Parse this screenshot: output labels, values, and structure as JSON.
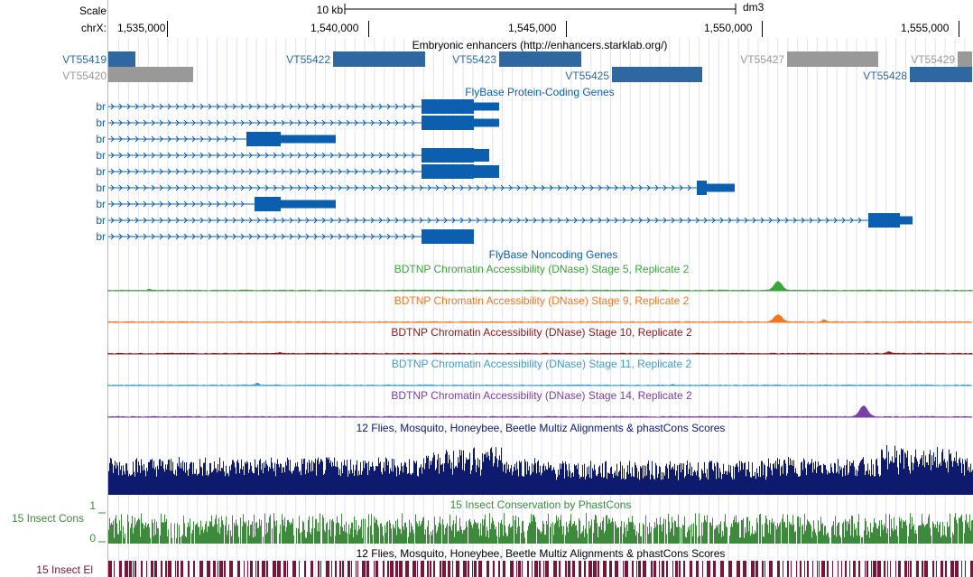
{
  "ruler": {
    "scale_label": "Scale",
    "chrom_label": "chrX:",
    "scalebar_label": "10 kb",
    "assembly": "dm3",
    "ticks": [
      "1,535,000",
      "1,540,000",
      "1,545,000",
      "1,550,000",
      "1,555,000"
    ]
  },
  "tracks": {
    "enhancers": {
      "title": "Embryonic enhancers (http://enhancers.starklab.org/)",
      "items": [
        {
          "id": "VT55419",
          "color": "#2f68a0"
        },
        {
          "id": "VT55420",
          "color": "#999999"
        },
        {
          "id": "VT55422",
          "color": "#2f68a0"
        },
        {
          "id": "VT55423",
          "color": "#2f68a0"
        },
        {
          "id": "VT55425",
          "color": "#2f68a0"
        },
        {
          "id": "VT55427",
          "color": "#999999"
        },
        {
          "id": "VT55429",
          "color": "#999999"
        },
        {
          "id": "VT55428",
          "color": "#2f68a0"
        }
      ]
    },
    "genes": {
      "title": "FlyBase Protein-Coding Genes",
      "color": "#0b5fae",
      "transcripts": [
        "br",
        "br",
        "br",
        "br",
        "br",
        "br",
        "br",
        "br",
        "br"
      ]
    },
    "noncoding": {
      "title": "FlyBase Noncoding Genes"
    },
    "dnase": [
      {
        "title": "BDTNP Chromatin Accessibility (DNase) Stage 5, Replicate 2",
        "color": "#3aa53a"
      },
      {
        "title": "BDTNP Chromatin Accessibility (DNase) Stage 9, Replicate 2",
        "color": "#f07820"
      },
      {
        "title": "BDTNP Chromatin Accessibility (DNase) Stage 10, Replicate 2",
        "color": "#8b1a1a"
      },
      {
        "title": "BDTNP Chromatin Accessibility (DNase) Stage 11, Replicate 2",
        "color": "#3b9fd4"
      },
      {
        "title": "BDTNP Chromatin Accessibility (DNase) Stage 14, Replicate 2",
        "color": "#7b3fa8"
      }
    ],
    "multiz": {
      "title": "12 Flies, Mosquito, Honeybee, Beetle Multiz Alignments & phastCons Scores",
      "color": "#0d1a6e"
    },
    "cons": {
      "title": "15 Insect Conservation by PhastCons",
      "left_label": "15 Insect Cons",
      "axis_max": "1",
      "axis_min": "0",
      "color": "#3d8a3d"
    },
    "multiz2": {
      "title": "12 Flies, Mosquito, Honeybee, Beetle Multiz Alignments & phastCons Scores"
    },
    "elements": {
      "left_label": "15 Insect El",
      "color": "#7a1535"
    }
  }
}
